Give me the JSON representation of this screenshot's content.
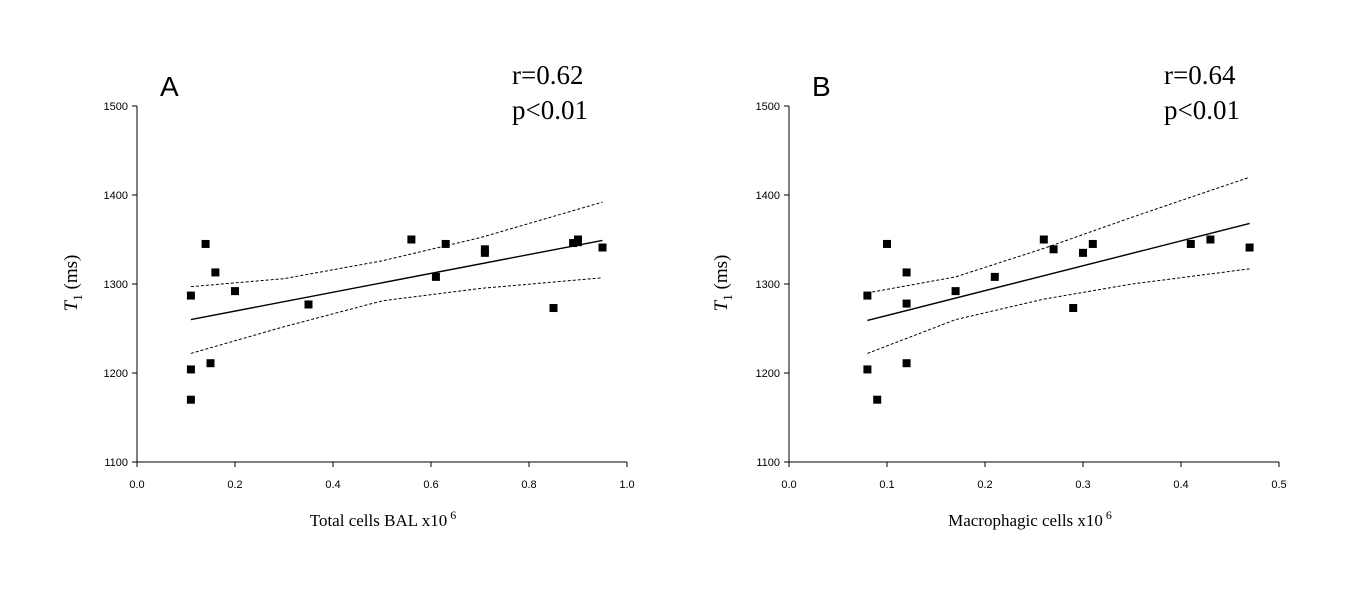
{
  "chart_data": [
    {
      "type": "scatter",
      "panel_label": "A",
      "stats": {
        "r": "r=0.62",
        "p": "p<0.01"
      },
      "xlabel": "Total cells BAL x10",
      "xlabel_sup": "6",
      "ylabel_main": "T",
      "ylabel_sub": "1",
      "ylabel_unit": " (ms)",
      "xlim": [
        0.0,
        1.0
      ],
      "ylim": [
        1100,
        1500
      ],
      "xticks": [
        0.0,
        0.2,
        0.4,
        0.6,
        0.8,
        1.0
      ],
      "xtick_labels": [
        "0.0",
        "0.2",
        "0.4",
        "0.6",
        "0.8",
        "1.0"
      ],
      "yticks": [
        1100,
        1200,
        1300,
        1400,
        1500
      ],
      "ytick_labels": [
        "1100",
        "1200",
        "1300",
        "1400",
        "1500"
      ],
      "points": [
        [
          0.11,
          1287
        ],
        [
          0.11,
          1204
        ],
        [
          0.11,
          1170
        ],
        [
          0.14,
          1345
        ],
        [
          0.15,
          1211
        ],
        [
          0.16,
          1313
        ],
        [
          0.2,
          1292
        ],
        [
          0.35,
          1277
        ],
        [
          0.56,
          1350
        ],
        [
          0.61,
          1308
        ],
        [
          0.63,
          1345
        ],
        [
          0.71,
          1339
        ],
        [
          0.71,
          1335
        ],
        [
          0.85,
          1273
        ],
        [
          0.89,
          1346
        ],
        [
          0.9,
          1350
        ],
        [
          0.9,
          1347
        ],
        [
          0.95,
          1341
        ]
      ],
      "fit_line": {
        "x": [
          0.11,
          0.95
        ],
        "y": [
          1260,
          1349
        ]
      },
      "ci_upper": {
        "x": [
          0.11,
          0.3,
          0.5,
          0.7,
          0.95
        ],
        "y": [
          1297,
          1306,
          1326,
          1352,
          1392
        ]
      },
      "ci_lower": {
        "x": [
          0.11,
          0.3,
          0.5,
          0.7,
          0.95
        ],
        "y": [
          1222,
          1252,
          1281,
          1295,
          1307
        ]
      }
    },
    {
      "type": "scatter",
      "panel_label": "B",
      "stats": {
        "r": "r=0.64",
        "p": "p<0.01"
      },
      "xlabel": "Macrophagic cells x10",
      "xlabel_sup": "6",
      "ylabel_main": "T",
      "ylabel_sub": "1",
      "ylabel_unit": " (ms)",
      "xlim": [
        0.0,
        0.5
      ],
      "ylim": [
        1100,
        1500
      ],
      "xticks": [
        0.0,
        0.1,
        0.2,
        0.3,
        0.4,
        0.5
      ],
      "xtick_labels": [
        "0.0",
        "0.1",
        "0.2",
        "0.3",
        "0.4",
        "0.5"
      ],
      "yticks": [
        1100,
        1200,
        1300,
        1400,
        1500
      ],
      "ytick_labels": [
        "1100",
        "1200",
        "1300",
        "1400",
        "1500"
      ],
      "points": [
        [
          0.08,
          1287
        ],
        [
          0.08,
          1204
        ],
        [
          0.09,
          1170
        ],
        [
          0.1,
          1345
        ],
        [
          0.12,
          1313
        ],
        [
          0.12,
          1278
        ],
        [
          0.12,
          1211
        ],
        [
          0.17,
          1292
        ],
        [
          0.21,
          1308
        ],
        [
          0.26,
          1350
        ],
        [
          0.27,
          1339
        ],
        [
          0.29,
          1273
        ],
        [
          0.3,
          1335
        ],
        [
          0.31,
          1345
        ],
        [
          0.41,
          1345
        ],
        [
          0.43,
          1350
        ],
        [
          0.47,
          1341
        ]
      ],
      "fit_line": {
        "x": [
          0.08,
          0.47
        ],
        "y": [
          1259,
          1368
        ]
      },
      "ci_upper": {
        "x": [
          0.08,
          0.17,
          0.26,
          0.35,
          0.47
        ],
        "y": [
          1290,
          1308,
          1340,
          1375,
          1420
        ]
      },
      "ci_lower": {
        "x": [
          0.08,
          0.17,
          0.26,
          0.35,
          0.47
        ],
        "y": [
          1222,
          1260,
          1283,
          1300,
          1317
        ]
      }
    }
  ]
}
